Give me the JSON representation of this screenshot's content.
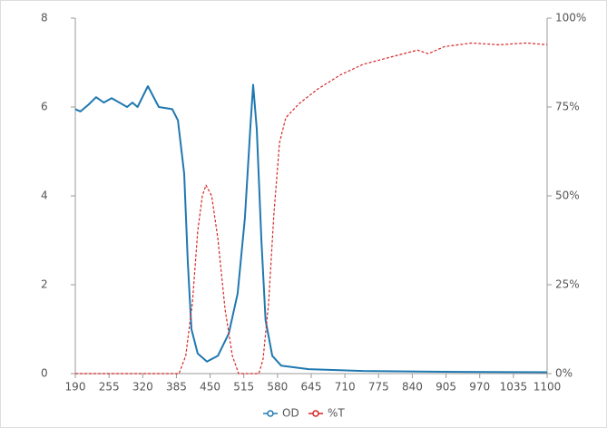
{
  "chart_data": {
    "type": "line",
    "xlim": [
      190,
      1100
    ],
    "xticks": [
      190,
      255,
      320,
      385,
      450,
      515,
      580,
      645,
      710,
      775,
      840,
      905,
      970,
      1035,
      1100
    ],
    "ylim": [
      0,
      8
    ],
    "yticks": [
      0,
      2,
      4,
      6,
      8
    ],
    "y2lim": [
      0,
      100
    ],
    "y2ticks": [
      {
        "value": 0,
        "label": "0%"
      },
      {
        "value": 25,
        "label": "25%"
      },
      {
        "value": 50,
        "label": "50%"
      },
      {
        "value": 75,
        "label": "75%"
      },
      {
        "value": 100,
        "label": "100%"
      }
    ],
    "series": [
      {
        "name": "OD",
        "color": "#1f78b0",
        "dash": false,
        "x": [
          190,
          200,
          215,
          230,
          245,
          260,
          290,
          300,
          310,
          330,
          351,
          377,
          388,
          400,
          407,
          414,
          426,
          444,
          465,
          486,
          503,
          517,
          528,
          533,
          540,
          549,
          557,
          570,
          587,
          640,
          745,
          900,
          1100
        ],
        "values": [
          5.95,
          5.9,
          6.05,
          6.22,
          6.1,
          6.2,
          6.0,
          6.1,
          6.0,
          6.47,
          6.0,
          5.95,
          5.7,
          4.5,
          2.5,
          1.0,
          0.45,
          0.27,
          0.4,
          0.9,
          1.8,
          3.5,
          5.6,
          6.5,
          5.5,
          3.0,
          1.2,
          0.4,
          0.18,
          0.1,
          0.06,
          0.04,
          0.03
        ]
      },
      {
        "name": "%T",
        "color": "#d62728",
        "dash": true,
        "axis": "y2",
        "x": [
          190,
          390,
          403,
          416,
          426,
          435,
          442,
          453,
          465,
          479,
          493,
          505,
          544,
          552,
          563,
          573,
          584,
          596,
          622,
          657,
          701,
          745,
          797,
          850,
          871,
          902,
          955,
          1007,
          1060,
          1100
        ],
        "values": [
          0,
          0,
          5,
          20,
          40,
          50,
          53,
          50,
          38,
          18,
          5,
          0,
          0,
          4,
          20,
          45,
          65,
          72,
          76,
          80,
          84,
          87,
          89,
          91,
          90,
          92,
          93,
          92.5,
          93,
          92.5
        ]
      }
    ]
  }
}
